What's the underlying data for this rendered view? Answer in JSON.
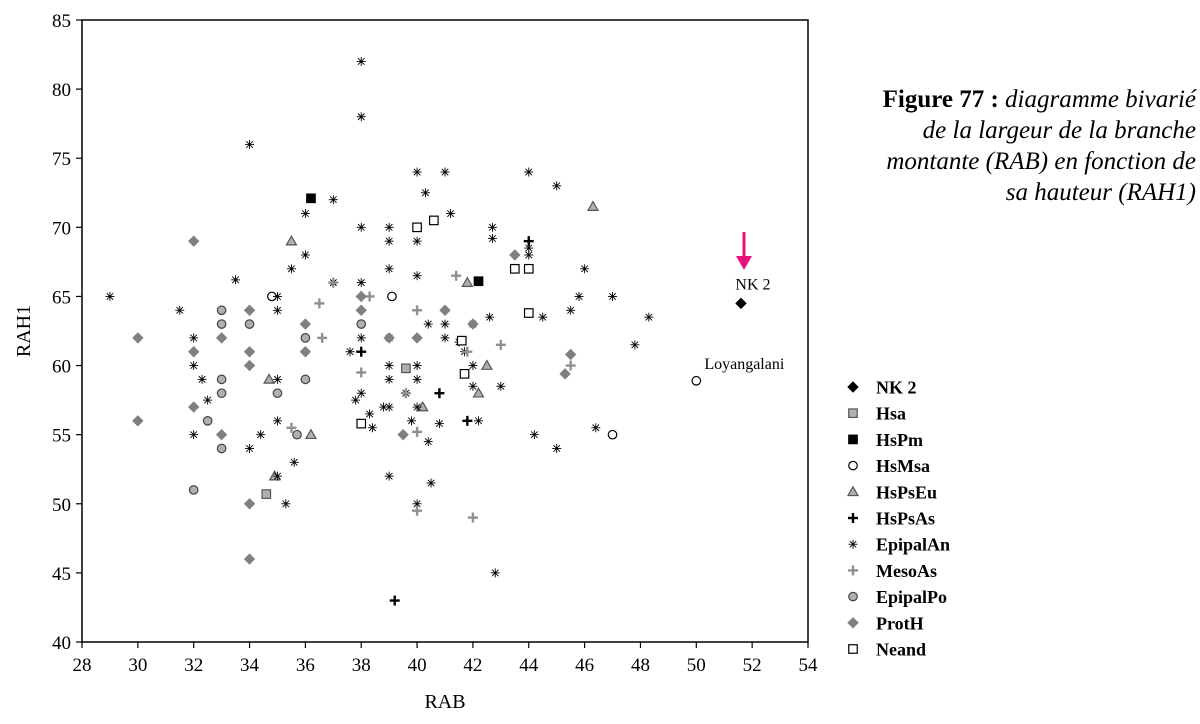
{
  "caption": {
    "figure_number": "Figure 77 :",
    "text": "diagramme bivarié de la largeur de la branche montante (RAB) en fonction de sa hauteur (RAH1)"
  },
  "colors": {
    "dark": "#000000",
    "gray": "#909090",
    "fill_gray": "#b0b0b0",
    "arrow": "#e8127c"
  },
  "chart_data": {
    "type": "scatter",
    "xlabel": "RAB",
    "ylabel": "RAH1",
    "xlim": [
      28,
      54
    ],
    "ylim": [
      40,
      85
    ],
    "xticks": [
      28,
      30,
      32,
      34,
      36,
      38,
      40,
      42,
      44,
      46,
      48,
      50,
      52,
      54
    ],
    "yticks": [
      40,
      45,
      50,
      55,
      60,
      65,
      70,
      75,
      80,
      85
    ],
    "grid": false,
    "legend_position": "right",
    "series": [
      {
        "name": "NK 2",
        "marker": "diamond",
        "color": "#000000",
        "filled": true,
        "points": [
          [
            51.6,
            64.5
          ]
        ]
      },
      {
        "name": "Hsa",
        "marker": "square",
        "color": "#555555",
        "filled": true,
        "fill": "#b0b0b0",
        "points": [
          [
            34.6,
            50.7
          ],
          [
            39.6,
            59.8
          ]
        ]
      },
      {
        "name": "HsPm",
        "marker": "square",
        "color": "#000000",
        "filled": true,
        "points": [
          [
            36.2,
            72.1
          ],
          [
            42.2,
            66.1
          ]
        ]
      },
      {
        "name": "HsMsa",
        "marker": "circle",
        "color": "#000000",
        "filled": false,
        "points": [
          [
            34.8,
            65.0
          ],
          [
            39.1,
            65.0
          ],
          [
            47.0,
            55.0
          ],
          [
            50.0,
            58.9
          ]
        ]
      },
      {
        "name": "HsPsEu",
        "marker": "triangle",
        "color": "#555555",
        "filled": true,
        "fill": "#b0b0b0",
        "points": [
          [
            35.5,
            69.0
          ],
          [
            34.7,
            59.0
          ],
          [
            36.2,
            55.0
          ],
          [
            34.9,
            52.0
          ],
          [
            40.2,
            57.0
          ],
          [
            41.8,
            66.0
          ],
          [
            42.5,
            60.0
          ],
          [
            42.2,
            58.0
          ],
          [
            46.3,
            71.5
          ]
        ]
      },
      {
        "name": "HsPsAs",
        "marker": "plus",
        "color": "#000000",
        "filled": true,
        "points": [
          [
            44.0,
            69.0
          ],
          [
            38.0,
            61.0
          ],
          [
            40.8,
            58.0
          ],
          [
            41.8,
            56.0
          ],
          [
            39.2,
            43.0
          ]
        ]
      },
      {
        "name": "EpipalAn",
        "marker": "asterisk",
        "color": "#000000",
        "filled": false,
        "points": [
          [
            29.0,
            65.0
          ],
          [
            31.5,
            64.0
          ],
          [
            32.0,
            62.0
          ],
          [
            32.0,
            60.0
          ],
          [
            32.0,
            55.0
          ],
          [
            32.3,
            59.0
          ],
          [
            32.5,
            57.5
          ],
          [
            33.5,
            66.2
          ],
          [
            34.0,
            76.0
          ],
          [
            34.0,
            54.0
          ],
          [
            34.4,
            55.0
          ],
          [
            35.0,
            59.0
          ],
          [
            35.0,
            65.0
          ],
          [
            35.0,
            64.0
          ],
          [
            35.0,
            56.0
          ],
          [
            35.0,
            52.0
          ],
          [
            35.3,
            50.0
          ],
          [
            35.5,
            67.0
          ],
          [
            35.6,
            53.0
          ],
          [
            36.0,
            71.0
          ],
          [
            36.0,
            68.0
          ],
          [
            37.0,
            72.0
          ],
          [
            37.0,
            66.0
          ],
          [
            37.6,
            61.0
          ],
          [
            37.8,
            57.5
          ],
          [
            38.0,
            82.0
          ],
          [
            38.0,
            78.0
          ],
          [
            38.0,
            70.0
          ],
          [
            38.0,
            66.0
          ],
          [
            38.0,
            62.0
          ],
          [
            38.0,
            58.0
          ],
          [
            38.3,
            56.5
          ],
          [
            38.4,
            55.5
          ],
          [
            38.8,
            57.0
          ],
          [
            39.0,
            70.0
          ],
          [
            39.0,
            69.0
          ],
          [
            39.0,
            67.0
          ],
          [
            39.0,
            62.0
          ],
          [
            39.0,
            60.0
          ],
          [
            39.0,
            59.0
          ],
          [
            39.0,
            57.0
          ],
          [
            39.0,
            52.0
          ],
          [
            39.6,
            58.0
          ],
          [
            39.8,
            56.0
          ],
          [
            40.0,
            74.0
          ],
          [
            40.0,
            69.0
          ],
          [
            40.0,
            66.5
          ],
          [
            40.0,
            60.0
          ],
          [
            40.0,
            59.0
          ],
          [
            40.0,
            57.0
          ],
          [
            40.0,
            50.0
          ],
          [
            40.3,
            72.5
          ],
          [
            40.4,
            63.0
          ],
          [
            40.4,
            54.5
          ],
          [
            40.5,
            51.5
          ],
          [
            40.8,
            55.8
          ],
          [
            41.0,
            74.0
          ],
          [
            41.0,
            63.0
          ],
          [
            41.0,
            62.0
          ],
          [
            41.2,
            71.0
          ],
          [
            41.5,
            61.7
          ],
          [
            41.7,
            61.0
          ],
          [
            42.0,
            63.0
          ],
          [
            42.0,
            60.0
          ],
          [
            42.0,
            58.5
          ],
          [
            42.2,
            56.0
          ],
          [
            42.7,
            70.0
          ],
          [
            42.7,
            69.2
          ],
          [
            42.6,
            63.5
          ],
          [
            42.8,
            45.0
          ],
          [
            43.0,
            58.5
          ],
          [
            44.0,
            74.0
          ],
          [
            44.0,
            68.5
          ],
          [
            44.0,
            68.0
          ],
          [
            44.2,
            55.0
          ],
          [
            44.5,
            63.5
          ],
          [
            45.0,
            73.0
          ],
          [
            45.0,
            54.0
          ],
          [
            45.5,
            64.0
          ],
          [
            45.8,
            65.0
          ],
          [
            46.0,
            67.0
          ],
          [
            46.4,
            55.5
          ],
          [
            47.0,
            65.0
          ],
          [
            47.8,
            61.5
          ],
          [
            48.3,
            63.5
          ]
        ]
      },
      {
        "name": "MesoAs",
        "marker": "plus",
        "color": "#909090",
        "filled": true,
        "points": [
          [
            35.5,
            55.5
          ],
          [
            36.5,
            64.5
          ],
          [
            36.6,
            62.0
          ],
          [
            37.0,
            66.0
          ],
          [
            38.0,
            65.0
          ],
          [
            38.0,
            59.5
          ],
          [
            38.3,
            65.0
          ],
          [
            39.6,
            58.0
          ],
          [
            40.0,
            64.0
          ],
          [
            40.0,
            55.2
          ],
          [
            40.0,
            49.5
          ],
          [
            41.4,
            66.5
          ],
          [
            41.8,
            61.0
          ],
          [
            42.0,
            49.0
          ],
          [
            43.0,
            61.5
          ],
          [
            45.5,
            60.0
          ]
        ]
      },
      {
        "name": "EpipalPo",
        "marker": "circle",
        "color": "#444444",
        "filled": true,
        "fill": "#b0b0b0",
        "points": [
          [
            32.0,
            51.0
          ],
          [
            32.5,
            56.0
          ],
          [
            33.0,
            64.0
          ],
          [
            33.0,
            63.0
          ],
          [
            33.0,
            59.0
          ],
          [
            33.0,
            58.0
          ],
          [
            33.0,
            54.0
          ],
          [
            34.0,
            63.0
          ],
          [
            35.0,
            58.0
          ],
          [
            35.7,
            55.0
          ],
          [
            36.0,
            62.0
          ],
          [
            36.0,
            59.0
          ],
          [
            38.0,
            63.0
          ]
        ]
      },
      {
        "name": "ProtH",
        "marker": "diamond",
        "color": "#808080",
        "filled": true,
        "points": [
          [
            30.0,
            62.0
          ],
          [
            30.0,
            56.0
          ],
          [
            32.0,
            69.0
          ],
          [
            32.0,
            61.0
          ],
          [
            32.0,
            57.0
          ],
          [
            33.0,
            62.0
          ],
          [
            33.0,
            55.0
          ],
          [
            34.0,
            64.0
          ],
          [
            34.0,
            61.0
          ],
          [
            34.0,
            60.0
          ],
          [
            34.0,
            50.0
          ],
          [
            34.0,
            46.0
          ],
          [
            36.0,
            63.0
          ],
          [
            36.0,
            61.0
          ],
          [
            38.0,
            65.0
          ],
          [
            38.0,
            64.0
          ],
          [
            39.0,
            62.0
          ],
          [
            39.5,
            55.0
          ],
          [
            40.0,
            62.0
          ],
          [
            41.0,
            64.0
          ],
          [
            42.0,
            63.0
          ],
          [
            43.5,
            68.0
          ],
          [
            45.3,
            59.4
          ],
          [
            45.5,
            60.8
          ]
        ]
      },
      {
        "name": "Neand",
        "marker": "square",
        "color": "#000000",
        "filled": false,
        "points": [
          [
            40.0,
            70.0
          ],
          [
            40.6,
            70.5
          ],
          [
            43.5,
            67.0
          ],
          [
            44.0,
            67.0
          ],
          [
            44.0,
            63.8
          ],
          [
            41.6,
            61.8
          ],
          [
            41.7,
            59.4
          ],
          [
            38.0,
            55.8
          ]
        ]
      }
    ],
    "annotations": [
      {
        "text": "NK 2",
        "x": 51.6,
        "y": 64.5
      },
      {
        "text": "Loyangalani",
        "x": 50.0,
        "y": 58.9
      }
    ]
  }
}
